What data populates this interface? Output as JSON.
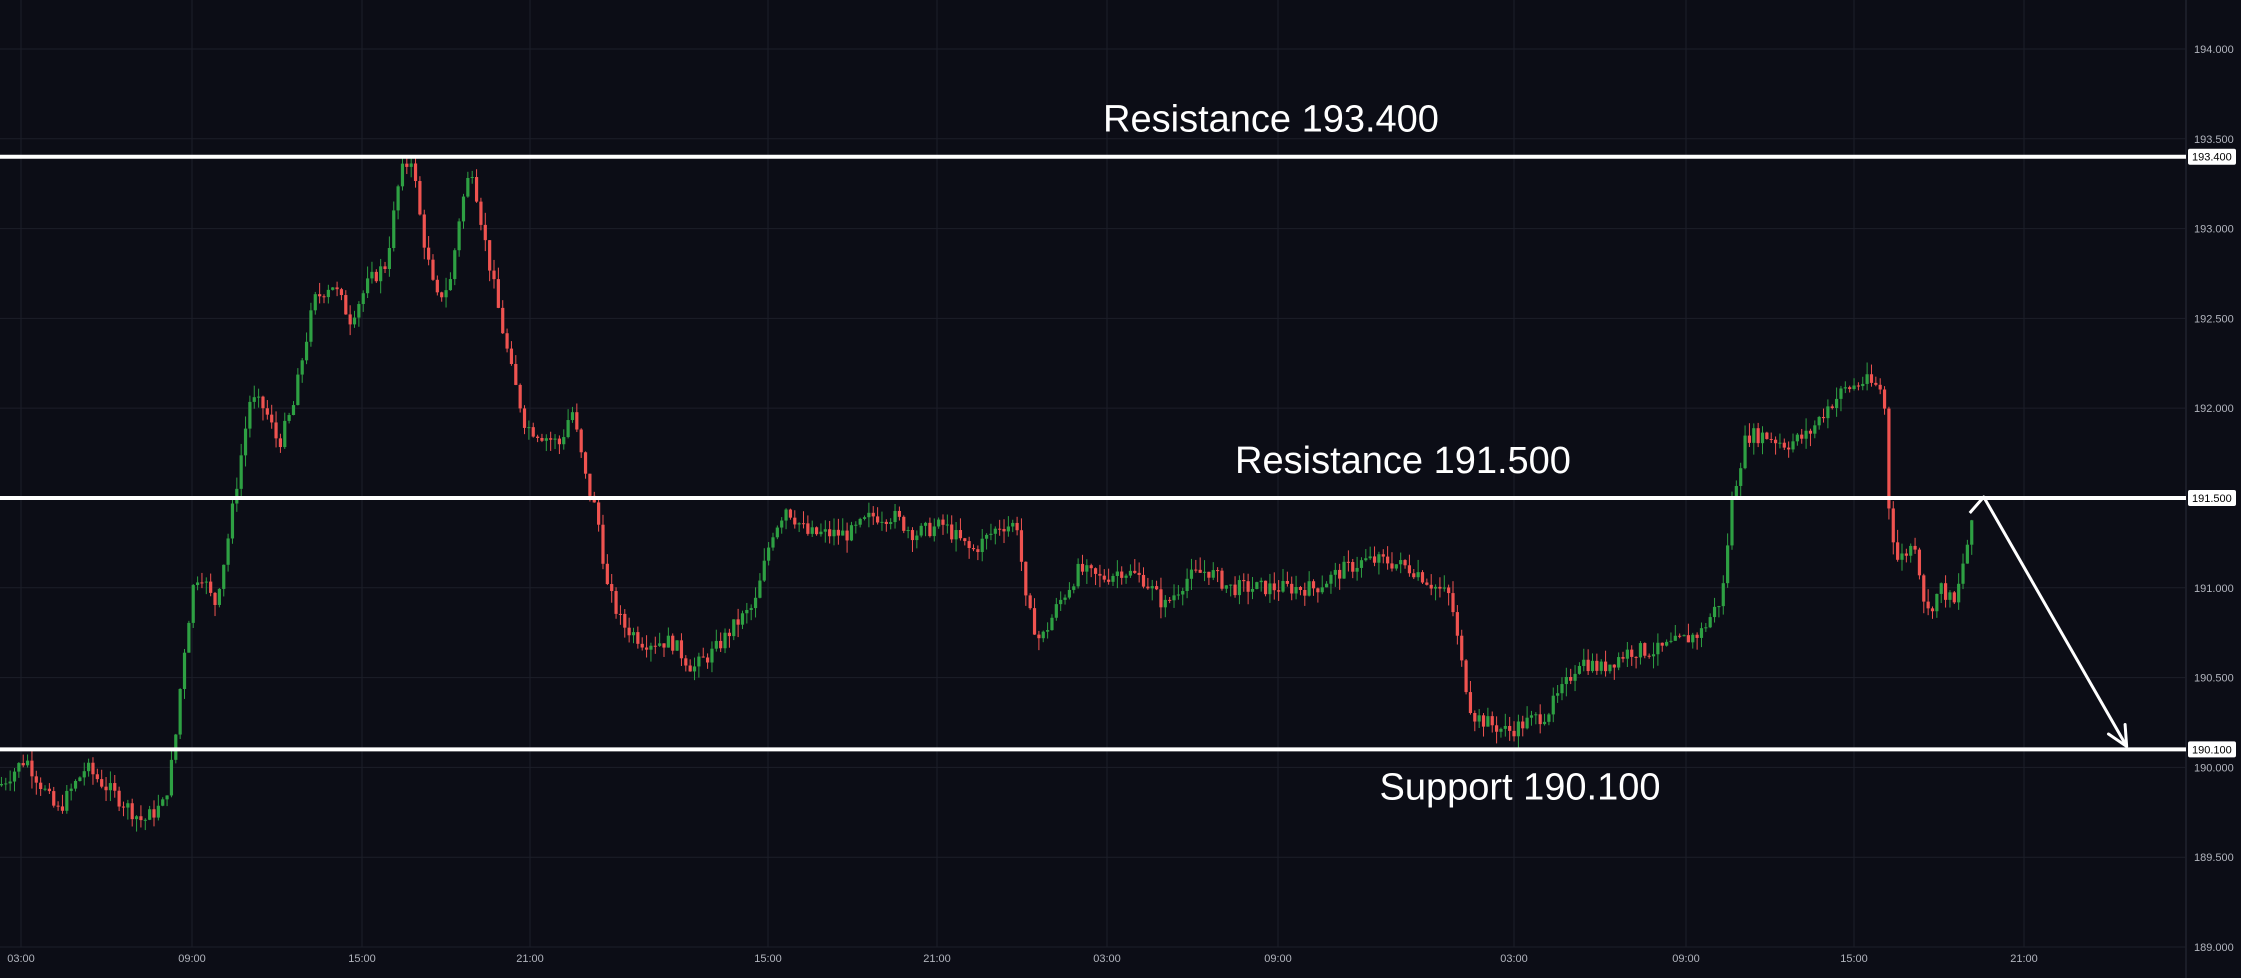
{
  "chart_data": {
    "type": "candlestick",
    "price_axis_ticks": [
      "194.000",
      "193.500",
      "193.000",
      "192.500",
      "192.000",
      "191.500",
      "191.000",
      "190.500",
      "190.000",
      "189.500",
      "189.000"
    ],
    "time_axis_ticks": [
      "03:00",
      "09:00",
      "15:00",
      "21:00",
      "15:00",
      "21:00",
      "03:00",
      "09:00",
      "03:00",
      "09:00",
      "15:00",
      "21:00"
    ],
    "ylim": [
      189.0,
      194.1
    ],
    "levels": [
      {
        "label": "Resistance 193.400",
        "value": 193.4,
        "axis_tag": "193.400"
      },
      {
        "label": "Resistance 191.500",
        "value": 191.5,
        "axis_tag": "191.500"
      },
      {
        "label": "Support 190.100",
        "value": 190.1,
        "axis_tag": "190.100"
      }
    ],
    "projection": {
      "from": 191.5,
      "to": 190.1,
      "direction": "down"
    },
    "price_path": [
      [
        0,
        189.9
      ],
      [
        18,
        190.05
      ],
      [
        40,
        189.75
      ],
      [
        60,
        190.0
      ],
      [
        80,
        189.85
      ],
      [
        100,
        189.7
      ],
      [
        115,
        189.8
      ],
      [
        122,
        190.1
      ],
      [
        128,
        190.6
      ],
      [
        135,
        191.0
      ],
      [
        140,
        191.1
      ],
      [
        150,
        190.9
      ],
      [
        158,
        191.2
      ],
      [
        166,
        191.6
      ],
      [
        175,
        192.05
      ],
      [
        185,
        192.0
      ],
      [
        195,
        191.8
      ],
      [
        205,
        192.0
      ],
      [
        212,
        192.3
      ],
      [
        220,
        192.6
      ],
      [
        232,
        192.7
      ],
      [
        245,
        192.5
      ],
      [
        258,
        192.7
      ],
      [
        270,
        192.8
      ],
      [
        280,
        193.3
      ],
      [
        288,
        193.4
      ],
      [
        295,
        193.0
      ],
      [
        305,
        192.6
      ],
      [
        315,
        192.7
      ],
      [
        322,
        193.1
      ],
      [
        330,
        193.35
      ],
      [
        340,
        192.9
      ],
      [
        350,
        192.5
      ],
      [
        358,
        192.2
      ],
      [
        368,
        191.9
      ],
      [
        380,
        191.85
      ],
      [
        392,
        191.8
      ],
      [
        400,
        192.0
      ],
      [
        410,
        191.6
      ],
      [
        418,
        191.4
      ],
      [
        425,
        191.0
      ],
      [
        435,
        190.8
      ],
      [
        450,
        190.7
      ],
      [
        470,
        190.7
      ],
      [
        485,
        190.55
      ],
      [
        500,
        190.65
      ],
      [
        515,
        190.8
      ],
      [
        528,
        190.9
      ],
      [
        540,
        191.3
      ],
      [
        550,
        191.45
      ],
      [
        565,
        191.3
      ],
      [
        580,
        191.3
      ],
      [
        595,
        191.3
      ],
      [
        610,
        191.4
      ],
      [
        625,
        191.4
      ],
      [
        640,
        191.3
      ],
      [
        660,
        191.35
      ],
      [
        680,
        191.2
      ],
      [
        700,
        191.35
      ],
      [
        712,
        191.35
      ],
      [
        718,
        190.9
      ],
      [
        728,
        190.7
      ],
      [
        740,
        190.9
      ],
      [
        755,
        191.1
      ],
      [
        770,
        191.05
      ],
      [
        785,
        191.1
      ],
      [
        800,
        191.05
      ],
      [
        815,
        190.9
      ],
      [
        830,
        191.05
      ],
      [
        845,
        191.1
      ],
      [
        860,
        191.0
      ],
      [
        880,
        191.0
      ],
      [
        900,
        191.0
      ],
      [
        920,
        191.0
      ],
      [
        940,
        191.1
      ],
      [
        955,
        191.15
      ],
      [
        970,
        191.15
      ],
      [
        990,
        191.1
      ],
      [
        1005,
        191.0
      ],
      [
        1015,
        190.95
      ],
      [
        1022,
        190.6
      ],
      [
        1030,
        190.3
      ],
      [
        1040,
        190.25
      ],
      [
        1055,
        190.2
      ],
      [
        1068,
        190.25
      ],
      [
        1082,
        190.3
      ],
      [
        1095,
        190.45
      ],
      [
        1105,
        190.6
      ],
      [
        1120,
        190.55
      ],
      [
        1140,
        190.65
      ],
      [
        1160,
        190.65
      ],
      [
        1175,
        190.7
      ],
      [
        1190,
        190.75
      ],
      [
        1205,
        190.95
      ],
      [
        1212,
        191.5
      ],
      [
        1222,
        191.85
      ],
      [
        1235,
        191.85
      ],
      [
        1250,
        191.8
      ],
      [
        1265,
        191.85
      ],
      [
        1278,
        192.0
      ],
      [
        1290,
        192.1
      ],
      [
        1305,
        192.15
      ],
      [
        1318,
        192.1
      ],
      [
        1322,
        191.4
      ],
      [
        1328,
        191.15
      ],
      [
        1340,
        191.25
      ],
      [
        1348,
        190.85
      ],
      [
        1358,
        191.0
      ],
      [
        1368,
        190.9
      ],
      [
        1375,
        191.2
      ],
      [
        1382,
        191.4
      ]
    ],
    "arrow": {
      "from": [
        1388,
        191.5
      ],
      "to": [
        1488,
        190.1
      ]
    },
    "title": "",
    "xlabel": "",
    "ylabel": ""
  },
  "colors": {
    "background": "#0c0d16",
    "grid": "#1c1e29",
    "up_candle": "#2ea043",
    "down_candle": "#ef5350",
    "level_line": "#ffffff",
    "axis_text": "#b2b5be"
  }
}
